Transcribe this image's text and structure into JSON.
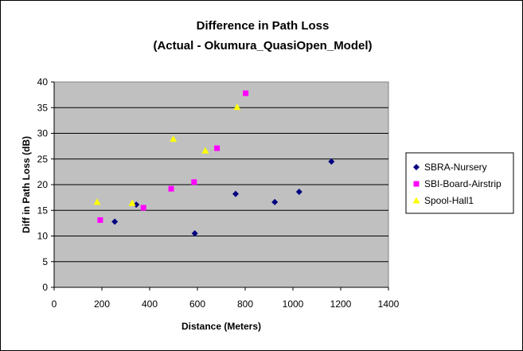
{
  "chart_data": {
    "type": "scatter",
    "title": "Difference in Path Loss",
    "subtitle": "(Actual - Okumura_QuasiOpen_Model)",
    "xlabel": "Distance (Meters)",
    "ylabel": "Diff in Path Loss (dB)",
    "xlim": [
      0,
      1400
    ],
    "ylim": [
      0,
      40
    ],
    "xticks": [
      0,
      200,
      400,
      600,
      800,
      1000,
      1200,
      1400
    ],
    "yticks": [
      0,
      5,
      10,
      15,
      20,
      25,
      30,
      35,
      40
    ],
    "grid": "horizontal",
    "legend_position": "right",
    "plot_background": "#C0C0C0",
    "series": [
      {
        "name": "SBRA-Nursery",
        "marker": "diamond",
        "color": "#000080",
        "points": [
          [
            254,
            12.8
          ],
          [
            344,
            16.1
          ],
          [
            589,
            10.5
          ],
          [
            760,
            18.2
          ],
          [
            924,
            16.6
          ],
          [
            1026,
            18.6
          ],
          [
            1161,
            24.5
          ]
        ]
      },
      {
        "name": "SBI-Board-Airstrip",
        "marker": "square",
        "color": "#FF00FF",
        "points": [
          [
            193,
            13.1
          ],
          [
            374,
            15.5
          ],
          [
            490,
            19.2
          ],
          [
            586,
            20.5
          ],
          [
            682,
            27.1
          ],
          [
            802,
            37.8
          ]
        ]
      },
      {
        "name": "Spool-Hall1",
        "marker": "triangle",
        "color": "#FFFF00",
        "points": [
          [
            180,
            16.6
          ],
          [
            327,
            16.4
          ],
          [
            499,
            28.9
          ],
          [
            633,
            26.6
          ],
          [
            766,
            35.1
          ]
        ]
      }
    ]
  }
}
